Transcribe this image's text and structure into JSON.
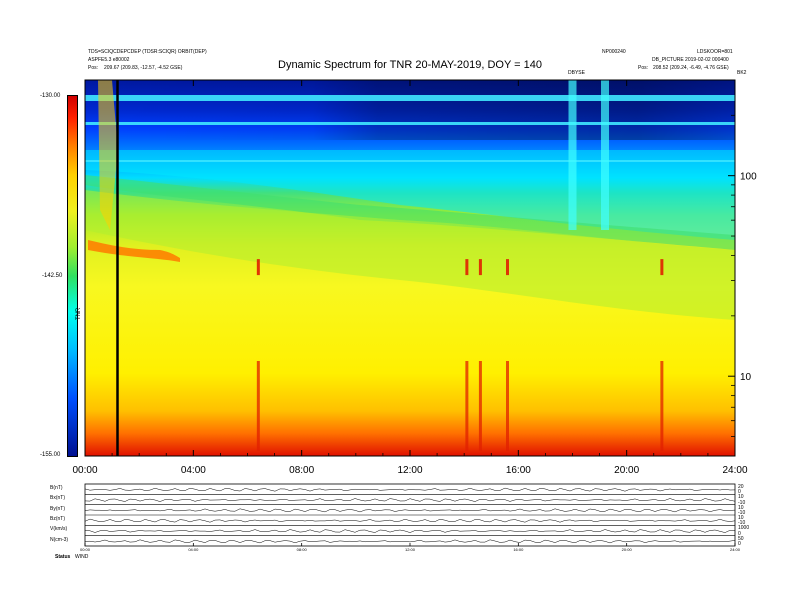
{
  "header": {
    "title": "Dynamic Spectrum for TNR 20-MAY-2019, DOY = 140",
    "left_line1": "TDS=SCIQCDEPCDEP (TDSR:SCIQR) ORBIT(DEP)",
    "left_line2": "ASPFE5.3 e80002",
    "left_line3_prefix": "Pos:",
    "left_line3": "209.67 (209.83, -12.57, -4.52 GSE)",
    "right_top_mid": "NP000240",
    "right_top_end": "LDSKOOR=801",
    "right_mid": "DB_PICTURE 2019-02-02 000400",
    "right_pos_prefix": "Pos:",
    "right_pos": "208.52 (209.24, -6.49, -4.76 GSE)",
    "marker_label": "DBYSE",
    "corner_label": "BK2"
  },
  "colorbar": {
    "top_label": "-130.00",
    "mid_label": "-142.50",
    "bottom_label": "-155.00",
    "axis_label": "TNR",
    "stops": [
      "#001090",
      "#0050ff",
      "#00c0ff",
      "#00ffee",
      "#30e060",
      "#a0ee30",
      "#f0f020",
      "#ffd000",
      "#ff8000",
      "#ff2000",
      "#d00000"
    ]
  },
  "chart_data": {
    "type": "heatmap",
    "title": "Dynamic Spectrum for TNR 20-MAY-2019, DOY = 140",
    "x_tick_labels": [
      "00:00",
      "04:00",
      "08:00",
      "12:00",
      "16:00",
      "20:00",
      "24:00"
    ],
    "x_range_hours": [
      0,
      24
    ],
    "y_scale": "log",
    "y_tick_labels": [
      "100",
      "10"
    ],
    "y_range_khz": [
      4,
      300
    ],
    "z_range": [
      -155.0,
      -130.0
    ],
    "vertical_marker_hour": 1.2,
    "features": {
      "bright_red_bursts_hours": [
        6.4,
        14.1,
        14.6,
        15.6,
        21.3
      ],
      "high_freq_cyan_band_hours": [
        18.0,
        19.2
      ]
    }
  },
  "panel": {
    "rows": [
      {
        "label": "B(nT)",
        "right_top": "20",
        "right_bot": "0"
      },
      {
        "label": "Bx(nT)",
        "right_top": "10",
        "right_bot": "-10"
      },
      {
        "label": "By(nT)",
        "right_top": "10",
        "right_bot": "-10"
      },
      {
        "label": "Bz(nT)",
        "right_top": "10",
        "right_bot": "-10"
      },
      {
        "label": "V(km/s)",
        "right_top": "1000",
        "right_bot": "0"
      },
      {
        "label": "N(cm-3)",
        "right_top": "50",
        "right_bot": "0"
      }
    ],
    "x_tick_labels": [
      "00:00",
      "04:00",
      "08:00",
      "12:00",
      "16:00",
      "20:00",
      "24:00"
    ],
    "footer_left": "Status",
    "footer_value": "WIND"
  }
}
